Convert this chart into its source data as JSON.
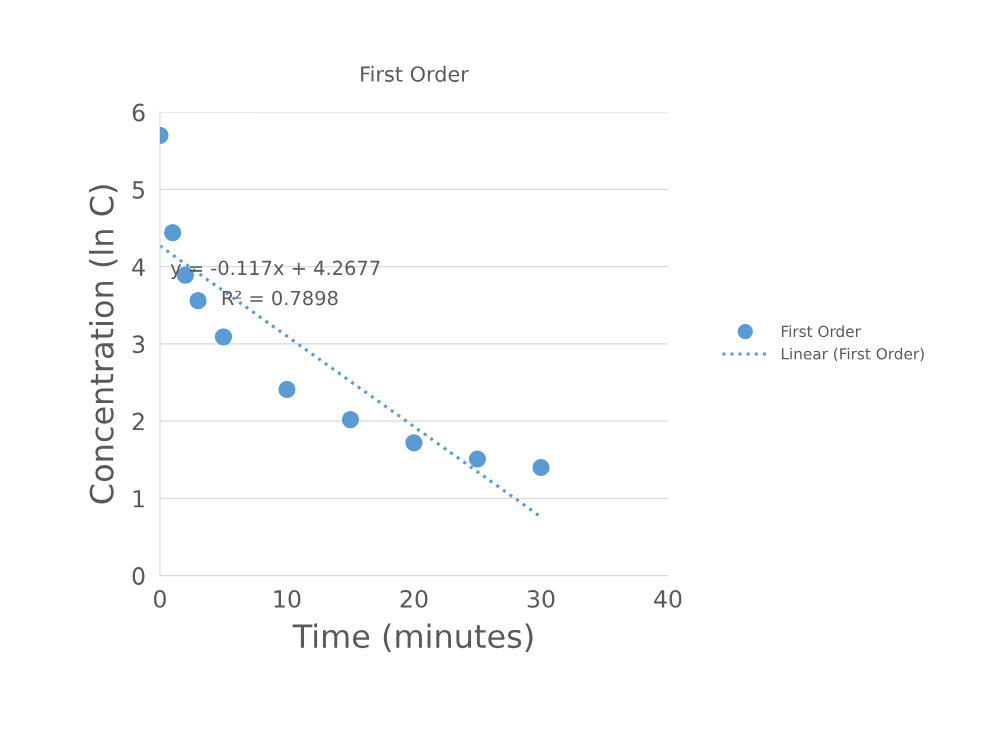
{
  "chart_data": {
    "type": "scatter",
    "title": "First Order",
    "xlabel": "Time (minutes)",
    "ylabel": "Concentration (ln C)",
    "series": [
      {
        "name": "First Order",
        "color": "#5b9bd5",
        "marker": "circle",
        "x": [
          0,
          1,
          2,
          3,
          5,
          10,
          15,
          20,
          25,
          30
        ],
        "values": [
          5.7,
          4.44,
          3.89,
          3.56,
          3.09,
          2.41,
          2.02,
          1.72,
          1.51,
          1.4
        ]
      },
      {
        "name": "Linear (First Order)",
        "type": "line",
        "color": "#5b9bd5",
        "line_style": "dotted",
        "x": [
          0,
          30
        ],
        "values": [
          4.27,
          0.76
        ]
      }
    ],
    "annotations": [
      "y = -0.117x + 4.2677",
      "R² = 0.7898"
    ],
    "xlim": [
      0,
      40
    ],
    "xticks": [
      0,
      10,
      20,
      30,
      40
    ],
    "ylim": [
      0,
      6
    ],
    "yticks": [
      0,
      1,
      2,
      3,
      4,
      5,
      6
    ],
    "grid": "y",
    "legend": "right"
  }
}
